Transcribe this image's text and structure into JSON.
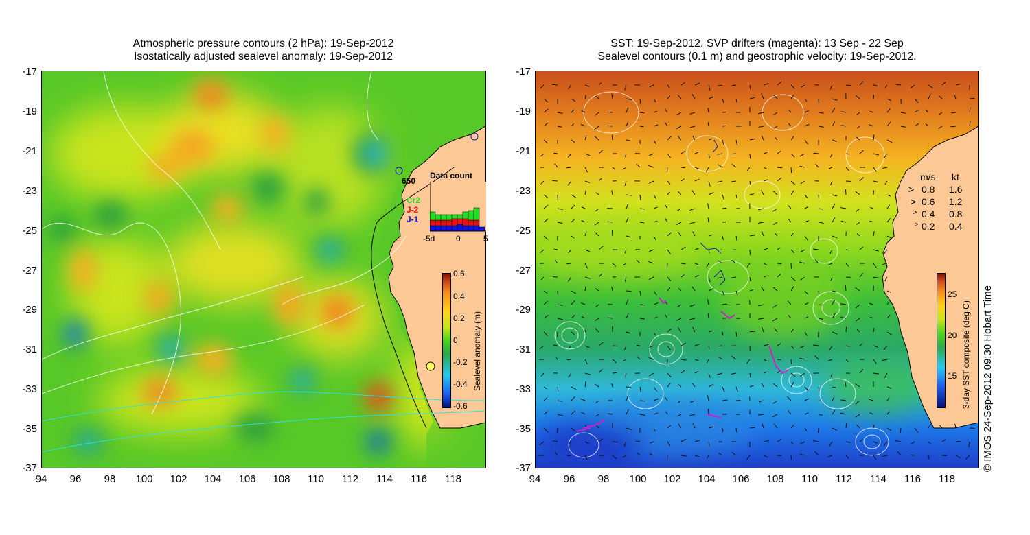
{
  "left_panel": {
    "title_line1": "Atmospheric pressure contours (2 hPa): 19-Sep-2012",
    "title_line2": "Isostatically adjusted sealevel anomaly: 19-Sep-2012",
    "y_ticks": [
      "-17",
      "-19",
      "-21",
      "-23",
      "-25",
      "-27",
      "-29",
      "-31",
      "-33",
      "-35",
      "-37"
    ],
    "x_ticks": [
      "94",
      "96",
      "98",
      "100",
      "102",
      "104",
      "106",
      "108",
      "110",
      "112",
      "114",
      "116",
      "118"
    ],
    "colorbar": {
      "label": "Sealevel anomaly (m)",
      "ticks": [
        "0.6",
        "0.4",
        "0.2",
        "0",
        "-0.2",
        "-0.4",
        "-0.6"
      ]
    },
    "station_label": "650",
    "data_count": {
      "title": "Data count",
      "legend": [
        "Cr2",
        "J-2",
        "J-1"
      ],
      "legend_colors": [
        "#22dd22",
        "#ee1111",
        "#1111dd"
      ],
      "x_ticks": [
        "-5d",
        "0",
        "5"
      ]
    }
  },
  "right_panel": {
    "title_line1": "SST: 19-Sep-2012. SVP drifters (magenta): 13 Sep - 22 Sep",
    "title_line2": "Sealevel contours (0.1 m) and geostrophic velocity: 19-Sep-2012.",
    "y_ticks": [
      "-17",
      "-19",
      "-21",
      "-23",
      "-25",
      "-27",
      "-29",
      "-31",
      "-33",
      "-35",
      "-37"
    ],
    "x_ticks": [
      "94",
      "96",
      "98",
      "100",
      "102",
      "104",
      "106",
      "108",
      "110",
      "112",
      "114",
      "116",
      "118"
    ],
    "colorbar": {
      "label": "3-day SST composite (deg C)",
      "ticks": [
        "25",
        "20",
        "15"
      ]
    },
    "velocity_legend": {
      "header_ms": "m/s",
      "header_kt": "kt",
      "rows": [
        {
          "ms": "0.8",
          "kt": "1.6"
        },
        {
          "ms": "0.6",
          "kt": "1.2"
        },
        {
          "ms": "0.4",
          "kt": "0.8"
        },
        {
          "ms": "0.2",
          "kt": "0.4"
        }
      ]
    }
  },
  "credit": "© IMOS 24-Sep-2012 09:30 Hobart Time",
  "colors": {
    "land": "#fbc896",
    "coast": "#000000",
    "contour": "#ffffff",
    "drifter": "#cc22cc"
  }
}
